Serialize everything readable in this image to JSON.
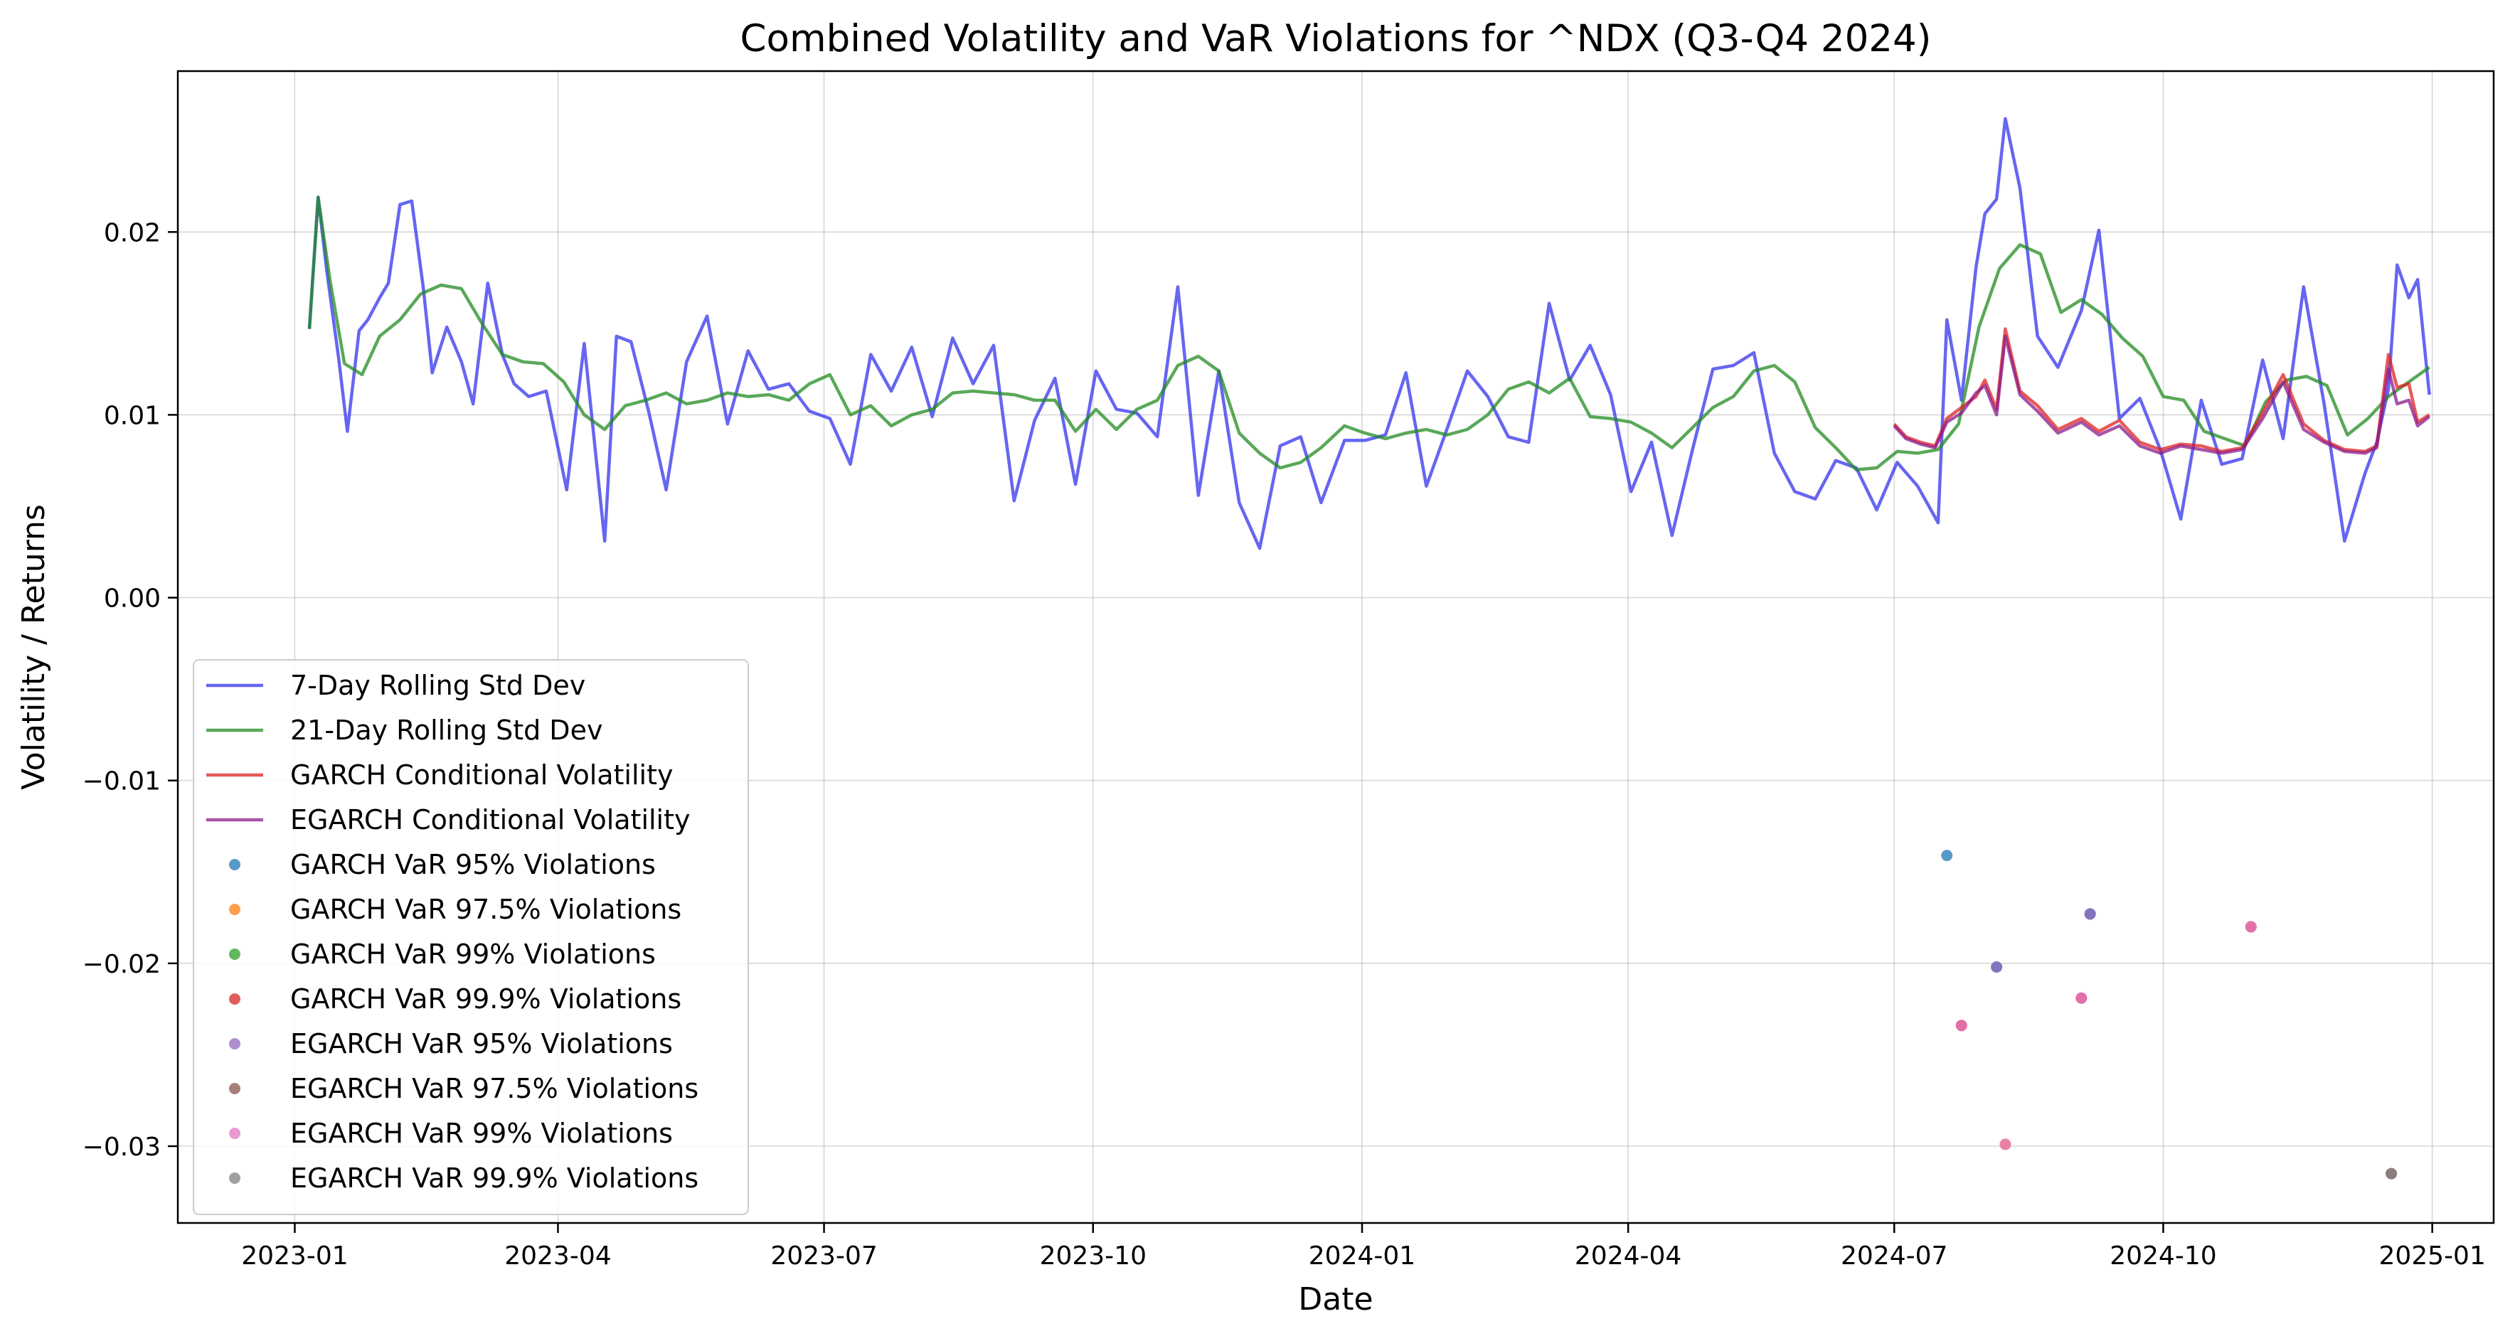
{
  "chart_data": {
    "type": "line",
    "title": "Combined Volatility and VaR Violations for ^NDX (Q3-Q4 2024)",
    "xlabel": "Date",
    "ylabel": "Volatility / Returns",
    "xlim": [
      "2022-11-22",
      "2025-01-22"
    ],
    "ylim": [
      -0.0342,
      0.0288
    ],
    "x_ticks": [
      "2023-01-01",
      "2023-04-01",
      "2023-07-01",
      "2023-10-01",
      "2024-01-01",
      "2024-04-01",
      "2024-07-01",
      "2024-10-01",
      "2025-01-01"
    ],
    "x_tick_labels": [
      "2023-01",
      "2023-04",
      "2023-07",
      "2023-10",
      "2024-01",
      "2024-04",
      "2024-07",
      "2024-10",
      "2025-01"
    ],
    "y_ticks": [
      -0.03,
      -0.02,
      -0.01,
      0.0,
      0.01,
      0.02
    ],
    "y_tick_labels": [
      "−0.03",
      "−0.02",
      "−0.01",
      "0.00",
      "0.01",
      "0.02"
    ],
    "grid": true,
    "legend_position": "lower-left",
    "series": [
      {
        "name": "7-Day Rolling Std Dev",
        "kind": "line",
        "color": "#3333ee",
        "x": [
          "2023-01-06",
          "2023-01-09",
          "2023-01-12",
          "2023-01-16",
          "2023-01-19",
          "2023-01-23",
          "2023-01-26",
          "2023-01-30",
          "2023-02-02",
          "2023-02-06",
          "2023-02-10",
          "2023-02-14",
          "2023-02-17",
          "2023-02-22",
          "2023-02-27",
          "2023-03-03",
          "2023-03-08",
          "2023-03-13",
          "2023-03-17",
          "2023-03-22",
          "2023-03-28",
          "2023-04-04",
          "2023-04-10",
          "2023-04-17",
          "2023-04-21",
          "2023-04-26",
          "2023-05-02",
          "2023-05-08",
          "2023-05-15",
          "2023-05-22",
          "2023-05-29",
          "2023-06-05",
          "2023-06-12",
          "2023-06-19",
          "2023-06-26",
          "2023-07-03",
          "2023-07-10",
          "2023-07-17",
          "2023-07-24",
          "2023-07-31",
          "2023-08-07",
          "2023-08-14",
          "2023-08-21",
          "2023-08-28",
          "2023-09-04",
          "2023-09-11",
          "2023-09-18",
          "2023-09-25",
          "2023-10-02",
          "2023-10-09",
          "2023-10-16",
          "2023-10-23",
          "2023-10-30",
          "2023-11-06",
          "2023-11-13",
          "2023-11-20",
          "2023-11-27",
          "2023-12-04",
          "2023-12-11",
          "2023-12-18",
          "2023-12-26",
          "2024-01-02",
          "2024-01-09",
          "2024-01-16",
          "2024-01-23",
          "2024-01-30",
          "2024-02-06",
          "2024-02-13",
          "2024-02-20",
          "2024-02-27",
          "2024-03-05",
          "2024-03-12",
          "2024-03-19",
          "2024-03-26",
          "2024-04-02",
          "2024-04-09",
          "2024-04-16",
          "2024-04-23",
          "2024-04-30",
          "2024-05-07",
          "2024-05-14",
          "2024-05-21",
          "2024-05-28",
          "2024-06-04",
          "2024-06-11",
          "2024-06-18",
          "2024-06-25",
          "2024-07-02",
          "2024-07-09",
          "2024-07-16",
          "2024-07-19",
          "2024-07-24",
          "2024-07-29",
          "2024-08-01",
          "2024-08-05",
          "2024-08-08",
          "2024-08-13",
          "2024-08-19",
          "2024-08-26",
          "2024-09-03",
          "2024-09-09",
          "2024-09-16",
          "2024-09-23",
          "2024-09-30",
          "2024-10-07",
          "2024-10-14",
          "2024-10-21",
          "2024-10-28",
          "2024-11-04",
          "2024-11-11",
          "2024-11-18",
          "2024-11-25",
          "2024-12-02",
          "2024-12-09",
          "2024-12-13",
          "2024-12-17",
          "2024-12-20",
          "2024-12-24",
          "2024-12-27",
          "2024-12-31"
        ],
        "y": [
          0.0147,
          0.0219,
          0.0178,
          0.0131,
          0.0091,
          0.0146,
          0.0152,
          0.0164,
          0.0172,
          0.0215,
          0.0217,
          0.0169,
          0.0123,
          0.0148,
          0.0129,
          0.0106,
          0.0172,
          0.0133,
          0.0117,
          0.011,
          0.0113,
          0.0059,
          0.0139,
          0.0031,
          0.0143,
          0.014,
          0.0102,
          0.0059,
          0.0129,
          0.0154,
          0.0095,
          0.0135,
          0.0114,
          0.0117,
          0.0102,
          0.0098,
          0.0073,
          0.0133,
          0.0113,
          0.0137,
          0.0099,
          0.0142,
          0.0117,
          0.0138,
          0.0053,
          0.0097,
          0.012,
          0.0062,
          0.0124,
          0.0103,
          0.0101,
          0.0088,
          0.017,
          0.0056,
          0.0124,
          0.0052,
          0.0027,
          0.0083,
          0.0088,
          0.0052,
          0.0086,
          0.0086,
          0.0089,
          0.0123,
          0.0061,
          0.0092,
          0.0124,
          0.011,
          0.0088,
          0.0085,
          0.0161,
          0.0119,
          0.0138,
          0.0111,
          0.0058,
          0.0085,
          0.0034,
          0.0081,
          0.0125,
          0.0127,
          0.0134,
          0.0079,
          0.0058,
          0.0054,
          0.0075,
          0.0071,
          0.0048,
          0.0074,
          0.0061,
          0.0041,
          0.0152,
          0.0108,
          0.0181,
          0.021,
          0.0218,
          0.0262,
          0.0224,
          0.0143,
          0.0126,
          0.0157,
          0.0201,
          0.0098,
          0.0109,
          0.0081,
          0.0043,
          0.0108,
          0.0073,
          0.0076,
          0.013,
          0.0087,
          0.017,
          0.0106,
          0.0031,
          0.0068,
          0.0085,
          0.0114,
          0.0182,
          0.0164,
          0.0174,
          0.0111
        ]
      },
      {
        "name": "21-Day Rolling Std Dev",
        "kind": "line",
        "color": "#228b22",
        "x": [
          "2023-01-06",
          "2023-01-09",
          "2023-01-13",
          "2023-01-18",
          "2023-01-24",
          "2023-01-30",
          "2023-02-06",
          "2023-02-13",
          "2023-02-20",
          "2023-02-27",
          "2023-03-06",
          "2023-03-13",
          "2023-03-20",
          "2023-03-27",
          "2023-04-03",
          "2023-04-10",
          "2023-04-17",
          "2023-04-24",
          "2023-05-01",
          "2023-05-08",
          "2023-05-15",
          "2023-05-22",
          "2023-05-29",
          "2023-06-05",
          "2023-06-12",
          "2023-06-19",
          "2023-06-26",
          "2023-07-03",
          "2023-07-10",
          "2023-07-17",
          "2023-07-24",
          "2023-07-31",
          "2023-08-07",
          "2023-08-14",
          "2023-08-21",
          "2023-08-28",
          "2023-09-04",
          "2023-09-11",
          "2023-09-18",
          "2023-09-25",
          "2023-10-02",
          "2023-10-09",
          "2023-10-16",
          "2023-10-23",
          "2023-10-30",
          "2023-11-06",
          "2023-11-13",
          "2023-11-20",
          "2023-11-27",
          "2023-12-04",
          "2023-12-11",
          "2023-12-18",
          "2023-12-26",
          "2024-01-02",
          "2024-01-09",
          "2024-01-16",
          "2024-01-23",
          "2024-01-30",
          "2024-02-06",
          "2024-02-13",
          "2024-02-20",
          "2024-02-27",
          "2024-03-05",
          "2024-03-12",
          "2024-03-19",
          "2024-03-26",
          "2024-04-02",
          "2024-04-09",
          "2024-04-16",
          "2024-04-23",
          "2024-04-30",
          "2024-05-07",
          "2024-05-14",
          "2024-05-21",
          "2024-05-28",
          "2024-06-04",
          "2024-06-11",
          "2024-06-18",
          "2024-06-25",
          "2024-07-02",
          "2024-07-09",
          "2024-07-16",
          "2024-07-23",
          "2024-07-30",
          "2024-08-06",
          "2024-08-13",
          "2024-08-20",
          "2024-08-27",
          "2024-09-03",
          "2024-09-10",
          "2024-09-17",
          "2024-09-24",
          "2024-10-01",
          "2024-10-08",
          "2024-10-15",
          "2024-10-22",
          "2024-10-29",
          "2024-11-05",
          "2024-11-12",
          "2024-11-19",
          "2024-11-26",
          "2024-12-03",
          "2024-12-10",
          "2024-12-17",
          "2024-12-24",
          "2024-12-31"
        ],
        "y": [
          0.0147,
          0.0219,
          0.0174,
          0.0128,
          0.0122,
          0.0143,
          0.0152,
          0.0166,
          0.0171,
          0.0169,
          0.015,
          0.0133,
          0.0129,
          0.0128,
          0.0118,
          0.01,
          0.0092,
          0.0105,
          0.0108,
          0.0112,
          0.0106,
          0.0108,
          0.0112,
          0.011,
          0.0111,
          0.0108,
          0.0117,
          0.0122,
          0.01,
          0.0105,
          0.0094,
          0.01,
          0.0103,
          0.0112,
          0.0113,
          0.0112,
          0.0111,
          0.0108,
          0.0108,
          0.0091,
          0.0103,
          0.0092,
          0.0103,
          0.0108,
          0.0127,
          0.0132,
          0.0124,
          0.009,
          0.0079,
          0.0071,
          0.0074,
          0.0082,
          0.0094,
          0.009,
          0.0087,
          0.009,
          0.0092,
          0.0089,
          0.0092,
          0.01,
          0.0114,
          0.0118,
          0.0112,
          0.012,
          0.0099,
          0.0098,
          0.0096,
          0.009,
          0.0082,
          0.0093,
          0.0104,
          0.011,
          0.0124,
          0.0127,
          0.0118,
          0.0093,
          0.0082,
          0.007,
          0.0071,
          0.008,
          0.0079,
          0.0081,
          0.0095,
          0.0148,
          0.018,
          0.0193,
          0.0188,
          0.0156,
          0.0163,
          0.0155,
          0.0142,
          0.0132,
          0.011,
          0.0108,
          0.0091,
          0.0087,
          0.0083,
          0.0107,
          0.0119,
          0.0121,
          0.0116,
          0.0089,
          0.0098,
          0.011,
          0.0118,
          0.0126
        ]
      },
      {
        "name": "GARCH Conditional Volatility",
        "kind": "line",
        "color": "#e02020",
        "x": [
          "2024-07-01",
          "2024-07-05",
          "2024-07-10",
          "2024-07-15",
          "2024-07-19",
          "2024-07-24",
          "2024-07-29",
          "2024-08-01",
          "2024-08-05",
          "2024-08-08",
          "2024-08-13",
          "2024-08-19",
          "2024-08-26",
          "2024-09-03",
          "2024-09-09",
          "2024-09-16",
          "2024-09-23",
          "2024-09-30",
          "2024-10-07",
          "2024-10-14",
          "2024-10-21",
          "2024-10-28",
          "2024-11-04",
          "2024-11-11",
          "2024-11-18",
          "2024-11-25",
          "2024-12-02",
          "2024-12-09",
          "2024-12-13",
          "2024-12-17",
          "2024-12-20",
          "2024-12-24",
          "2024-12-27",
          "2024-12-31"
        ],
        "y": [
          0.0095,
          0.0088,
          0.0085,
          0.0083,
          0.0098,
          0.0104,
          0.011,
          0.0119,
          0.0103,
          0.0147,
          0.0113,
          0.0105,
          0.0092,
          0.0098,
          0.0091,
          0.0097,
          0.0085,
          0.0081,
          0.0084,
          0.0083,
          0.008,
          0.0082,
          0.0101,
          0.0122,
          0.0095,
          0.0086,
          0.0081,
          0.008,
          0.0083,
          0.0133,
          0.0115,
          0.0117,
          0.0096,
          0.01
        ]
      },
      {
        "name": "EGARCH Conditional Volatility",
        "kind": "line",
        "color": "#8b1a8b",
        "x": [
          "2024-07-01",
          "2024-07-05",
          "2024-07-10",
          "2024-07-15",
          "2024-07-19",
          "2024-07-24",
          "2024-07-29",
          "2024-08-01",
          "2024-08-05",
          "2024-08-08",
          "2024-08-13",
          "2024-08-19",
          "2024-08-26",
          "2024-09-03",
          "2024-09-09",
          "2024-09-16",
          "2024-09-23",
          "2024-09-30",
          "2024-10-07",
          "2024-10-14",
          "2024-10-21",
          "2024-10-28",
          "2024-11-04",
          "2024-11-11",
          "2024-11-18",
          "2024-11-25",
          "2024-12-02",
          "2024-12-09",
          "2024-12-13",
          "2024-12-17",
          "2024-12-20",
          "2024-12-24",
          "2024-12-27",
          "2024-12-31"
        ],
        "y": [
          0.0094,
          0.0087,
          0.0084,
          0.0082,
          0.0096,
          0.0101,
          0.0112,
          0.0116,
          0.01,
          0.0143,
          0.0111,
          0.0102,
          0.009,
          0.0096,
          0.0089,
          0.0094,
          0.0083,
          0.0079,
          0.0083,
          0.0081,
          0.0079,
          0.0081,
          0.0098,
          0.0118,
          0.0092,
          0.0085,
          0.008,
          0.0079,
          0.0082,
          0.0125,
          0.0106,
          0.0108,
          0.0094,
          0.0099
        ]
      },
      {
        "name": "GARCH VaR 95% Violations",
        "kind": "scatter",
        "color": "#1f77b4",
        "x": [
          "2024-07-19",
          "2024-08-05",
          "2024-09-06"
        ],
        "y": [
          -0.0141,
          -0.0202,
          -0.0173
        ]
      },
      {
        "name": "GARCH VaR 97.5% Violations",
        "kind": "scatter",
        "color": "#ff7f0e",
        "x": [
          "2024-08-08"
        ],
        "y": [
          -0.0299
        ]
      },
      {
        "name": "GARCH VaR 99% Violations",
        "kind": "scatter",
        "color": "#2ca02c",
        "x": [],
        "y": []
      },
      {
        "name": "GARCH VaR 99.9% Violations",
        "kind": "scatter",
        "color": "#d62728",
        "x": [
          "2024-07-24",
          "2024-09-03",
          "2024-10-31"
        ],
        "y": [
          -0.0234,
          -0.0219,
          -0.018
        ]
      },
      {
        "name": "EGARCH VaR 95% Violations",
        "kind": "scatter",
        "color": "#9467bd",
        "x": [
          "2024-08-05",
          "2024-09-06"
        ],
        "y": [
          -0.0202,
          -0.0173
        ]
      },
      {
        "name": "EGARCH VaR 97.5% Violations",
        "kind": "scatter",
        "color": "#8c564b",
        "x": [
          "2024-12-18"
        ],
        "y": [
          -0.0315
        ]
      },
      {
        "name": "EGARCH VaR 99% Violations",
        "kind": "scatter",
        "color": "#e377c2",
        "x": [
          "2024-07-24",
          "2024-08-08",
          "2024-09-03",
          "2024-10-31"
        ],
        "y": [
          -0.0234,
          -0.0299,
          -0.0219,
          -0.018
        ]
      },
      {
        "name": "EGARCH VaR 99.9% Violations",
        "kind": "scatter",
        "color": "#7f7f7f",
        "x": [
          "2024-12-18"
        ],
        "y": [
          -0.0315
        ]
      }
    ]
  }
}
